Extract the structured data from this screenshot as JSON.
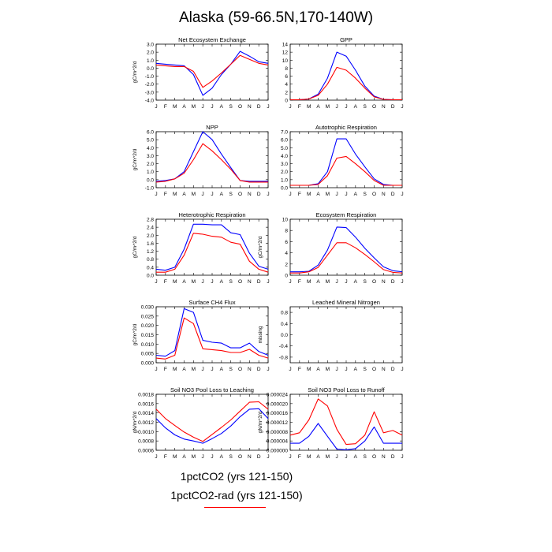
{
  "title": "Alaska (59-66.5N,170-140W)",
  "legend": {
    "entries": [
      {
        "label": "1pctCO2 (yrs 121-150)",
        "color": "#0000ff"
      },
      {
        "label": "1pctCO2-rad (yrs 121-150)",
        "color": "#ff0000"
      }
    ]
  },
  "chart_data": [
    {
      "type": "line",
      "title": "Net Ecosystem Exchange",
      "ylabel": "gC/m^2/d",
      "categories": [
        "J",
        "F",
        "M",
        "A",
        "M",
        "J",
        "J",
        "A",
        "S",
        "O",
        "N",
        "D",
        "J"
      ],
      "ylim": [
        -4.0,
        3.0
      ],
      "yticks": [
        -4.0,
        -3.0,
        -2.0,
        -1.0,
        0.0,
        1.0,
        2.0,
        3.0
      ],
      "ytick_labels": [
        "-4.0",
        "-3.0",
        "-2.0",
        "-1.0",
        "0.0",
        "1.0",
        "2.0",
        "3.0"
      ],
      "series": [
        {
          "color": "#0000ff",
          "values": [
            0.6,
            0.5,
            0.4,
            0.3,
            -0.8,
            -3.4,
            -2.5,
            -0.8,
            0.5,
            2.1,
            1.5,
            0.8,
            0.6
          ]
        },
        {
          "color": "#ff0000",
          "values": [
            0.4,
            0.3,
            0.2,
            0.2,
            -0.4,
            -2.4,
            -1.6,
            -0.6,
            0.5,
            1.6,
            1.1,
            0.6,
            0.4
          ]
        }
      ]
    },
    {
      "type": "line",
      "title": "GPP",
      "ylabel": "",
      "categories": [
        "J",
        "F",
        "M",
        "A",
        "M",
        "J",
        "J",
        "A",
        "S",
        "O",
        "N",
        "D",
        "J"
      ],
      "ylim": [
        0,
        14
      ],
      "yticks": [
        0,
        2,
        4,
        6,
        8,
        10,
        12,
        14
      ],
      "ytick_labels": [
        "0",
        "2",
        "4",
        "6",
        "8",
        "10",
        "12",
        "14"
      ],
      "series": [
        {
          "color": "#0000ff",
          "values": [
            0.1,
            0.1,
            0.3,
            1.5,
            5.5,
            12.0,
            11.0,
            7.5,
            3.5,
            1.0,
            0.2,
            0.1,
            0.1
          ]
        },
        {
          "color": "#ff0000",
          "values": [
            0.1,
            0.1,
            0.3,
            1.2,
            4.0,
            8.2,
            7.5,
            5.5,
            3.0,
            0.8,
            0.2,
            0.1,
            0.1
          ]
        }
      ]
    },
    {
      "type": "line",
      "title": "NPP",
      "ylabel": "gC/m^2/d",
      "categories": [
        "J",
        "F",
        "M",
        "A",
        "M",
        "J",
        "J",
        "A",
        "S",
        "O",
        "N",
        "D",
        "J"
      ],
      "ylim": [
        -1.0,
        6.0
      ],
      "yticks": [
        -1.0,
        0.0,
        1.0,
        2.0,
        3.0,
        4.0,
        5.0,
        6.0
      ],
      "ytick_labels": [
        "-1.0",
        "0.0",
        "1.0",
        "2.0",
        "3.0",
        "4.0",
        "5.0",
        "6.0"
      ],
      "series": [
        {
          "color": "#0000ff",
          "values": [
            -0.2,
            -0.1,
            0.1,
            1.0,
            3.5,
            6.0,
            5.0,
            3.2,
            1.5,
            -0.1,
            -0.2,
            -0.2,
            -0.2
          ]
        },
        {
          "color": "#ff0000",
          "values": [
            -0.3,
            -0.2,
            0.1,
            0.8,
            2.5,
            4.5,
            3.6,
            2.5,
            1.3,
            -0.1,
            -0.3,
            -0.3,
            -0.3
          ]
        }
      ]
    },
    {
      "type": "line",
      "title": "Autotrophic Respiration",
      "ylabel": "",
      "categories": [
        "J",
        "F",
        "M",
        "A",
        "M",
        "J",
        "J",
        "A",
        "S",
        "O",
        "N",
        "D",
        "J"
      ],
      "ylim": [
        0.0,
        7.0
      ],
      "yticks": [
        0.0,
        1.0,
        2.0,
        3.0,
        4.0,
        5.0,
        6.0,
        7.0
      ],
      "ytick_labels": [
        "0.0",
        "1.0",
        "2.0",
        "3.0",
        "4.0",
        "5.0",
        "6.0",
        "7.0"
      ],
      "series": [
        {
          "color": "#0000ff",
          "values": [
            0.3,
            0.3,
            0.3,
            0.5,
            2.0,
            6.1,
            6.1,
            4.2,
            2.6,
            1.1,
            0.4,
            0.3,
            0.3
          ]
        },
        {
          "color": "#ff0000",
          "values": [
            0.3,
            0.3,
            0.3,
            0.4,
            1.5,
            3.7,
            3.9,
            3.0,
            2.0,
            0.9,
            0.3,
            0.3,
            0.3
          ]
        }
      ]
    },
    {
      "type": "line",
      "title": "Heterotrophic Respiration",
      "ylabel": "gC/m^2/d",
      "categories": [
        "J",
        "F",
        "M",
        "A",
        "M",
        "J",
        "J",
        "A",
        "S",
        "O",
        "N",
        "D",
        "J"
      ],
      "ylim": [
        0.0,
        2.8
      ],
      "yticks": [
        0.0,
        0.4,
        0.8,
        1.2,
        1.6,
        2.0,
        2.4,
        2.8
      ],
      "ytick_labels": [
        "0.0",
        "0.4",
        "0.8",
        "1.2",
        "1.6",
        "2.0",
        "2.4",
        "2.8"
      ],
      "series": [
        {
          "color": "#0000ff",
          "values": [
            0.3,
            0.25,
            0.4,
            1.3,
            2.55,
            2.55,
            2.52,
            2.52,
            2.12,
            2.03,
            1.1,
            0.45,
            0.3
          ]
        },
        {
          "color": "#ff0000",
          "values": [
            0.15,
            0.15,
            0.3,
            1.0,
            2.1,
            2.05,
            1.95,
            1.9,
            1.65,
            1.55,
            0.7,
            0.3,
            0.15
          ]
        }
      ]
    },
    {
      "type": "line",
      "title": "Ecosystem Respiration",
      "ylabel": "gC/m^2/d",
      "categories": [
        "J",
        "F",
        "M",
        "A",
        "M",
        "J",
        "J",
        "A",
        "S",
        "O",
        "N",
        "D",
        "J"
      ],
      "ylim": [
        0,
        10
      ],
      "yticks": [
        0,
        2,
        4,
        6,
        8,
        10
      ],
      "ytick_labels": [
        "0",
        "2",
        "4",
        "6",
        "8",
        "10"
      ],
      "series": [
        {
          "color": "#0000ff",
          "values": [
            0.6,
            0.6,
            0.7,
            1.8,
            4.5,
            8.6,
            8.5,
            6.8,
            4.8,
            3.1,
            1.5,
            0.8,
            0.6
          ]
        },
        {
          "color": "#ff0000",
          "values": [
            0.4,
            0.4,
            0.6,
            1.4,
            3.6,
            5.8,
            5.8,
            4.9,
            3.7,
            2.4,
            1.0,
            0.5,
            0.4
          ]
        }
      ]
    },
    {
      "type": "line",
      "title": "Surface CH4 Flux",
      "ylabel": "gC/m^2/d",
      "categories": [
        "J",
        "F",
        "M",
        "A",
        "M",
        "J",
        "J",
        "A",
        "S",
        "O",
        "N",
        "D",
        "J"
      ],
      "ylim": [
        0.0,
        0.03
      ],
      "yticks": [
        0.0,
        0.005,
        0.01,
        0.015,
        0.02,
        0.025,
        0.03
      ],
      "ytick_labels": [
        "0.000",
        "0.005",
        "0.010",
        "0.015",
        "0.020",
        "0.025",
        "0.030"
      ],
      "series": [
        {
          "color": "#0000ff",
          "values": [
            0.004,
            0.0035,
            0.0065,
            0.029,
            0.027,
            0.012,
            0.011,
            0.0105,
            0.008,
            0.008,
            0.0105,
            0.006,
            0.004
          ]
        },
        {
          "color": "#ff0000",
          "values": [
            0.0025,
            0.002,
            0.004,
            0.024,
            0.021,
            0.0075,
            0.007,
            0.0065,
            0.0055,
            0.0055,
            0.0072,
            0.004,
            0.0025
          ]
        }
      ]
    },
    {
      "type": "line",
      "title": "Leached Mineral Nitrogen",
      "ylabel": "missing",
      "categories": [
        "J",
        "F",
        "M",
        "A",
        "M",
        "J",
        "J",
        "A",
        "S",
        "O",
        "N",
        "D",
        "J"
      ],
      "ylim": [
        -1.0,
        1.0
      ],
      "yticks": [
        -0.8,
        -0.4,
        0.0,
        0.4,
        0.8
      ],
      "ytick_labels": [
        "-0.8",
        "-0.4",
        "0.0",
        "0.4",
        "0.8"
      ],
      "series": []
    },
    {
      "type": "line",
      "title": "Soil NO3 Pool Loss to Leaching",
      "ylabel": "gN/m^2/d",
      "categories": [
        "J",
        "F",
        "M",
        "A",
        "M",
        "J",
        "J",
        "A",
        "S",
        "O",
        "N",
        "D",
        "J"
      ],
      "ylim": [
        0.0006,
        0.0018
      ],
      "yticks": [
        0.0006,
        0.0008,
        0.001,
        0.0012,
        0.0014,
        0.0016,
        0.0018
      ],
      "ytick_labels": [
        "0.0006",
        "0.0008",
        "0.0010",
        "0.0012",
        "0.0014",
        "0.0016",
        "0.0018"
      ],
      "series": [
        {
          "color": "#0000ff",
          "values": [
            0.00128,
            0.00108,
            0.00093,
            0.00084,
            0.0008,
            0.00075,
            0.00085,
            0.00096,
            0.00112,
            0.00132,
            0.00148,
            0.00149,
            0.00128
          ]
        },
        {
          "color": "#ff0000",
          "values": [
            0.00148,
            0.00128,
            0.00113,
            0.00099,
            0.00088,
            0.00079,
            0.00094,
            0.00109,
            0.00125,
            0.00144,
            0.00163,
            0.00164,
            0.00148
          ]
        }
      ]
    },
    {
      "type": "line",
      "title": "Soil NO3 Pool Loss to Runoff",
      "ylabel": "gN/m^2/d",
      "categories": [
        "J",
        "F",
        "M",
        "A",
        "M",
        "J",
        "J",
        "A",
        "S",
        "O",
        "N",
        "D",
        "J"
      ],
      "ylim": [
        0.0,
        2.4e-05
      ],
      "yticks": [
        0.0,
        4e-06,
        8e-06,
        1.2e-05,
        1.6e-05,
        2e-05,
        2.4e-05
      ],
      "ytick_labels": [
        "0.000000",
        "0.000004",
        "0.000008",
        "0.000012",
        "0.000016",
        "0.000020",
        "0.000024"
      ],
      "series": [
        {
          "color": "#0000ff",
          "values": [
            3e-06,
            3e-06,
            6e-06,
            1.15e-05,
            6e-06,
            5e-07,
            2e-07,
            7e-07,
            4e-06,
            1e-05,
            3e-06,
            3e-06,
            3e-06
          ]
        },
        {
          "color": "#ff0000",
          "values": [
            6.5e-06,
            7.5e-06,
            1.3e-05,
            2.2e-05,
            1.9e-05,
            9e-06,
            2.5e-06,
            2.8e-06,
            6.5e-06,
            1.65e-05,
            7.5e-06,
            8.5e-06,
            6.5e-06
          ]
        }
      ]
    }
  ]
}
